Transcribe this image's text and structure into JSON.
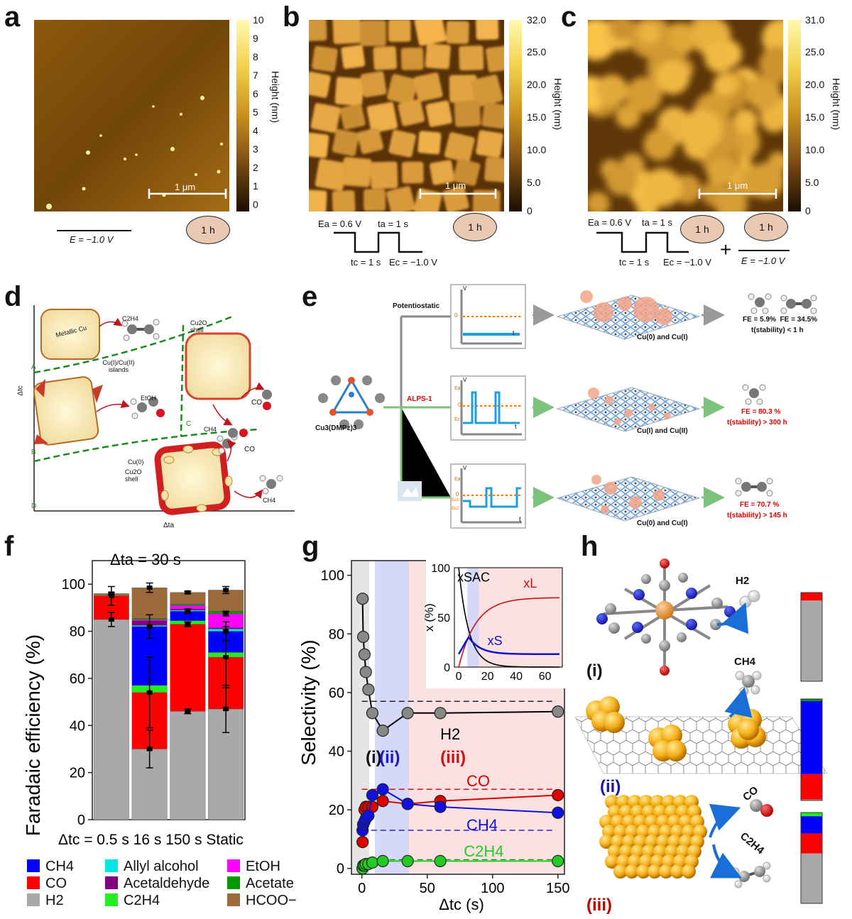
{
  "panel_labels": {
    "a": "a",
    "b": "b",
    "c": "c",
    "d": "d",
    "e": "e",
    "f": "f",
    "g": "g",
    "h": "h"
  },
  "afm": {
    "a": {
      "ticks": [
        "10",
        "9",
        "8",
        "7",
        "6",
        "5",
        "4",
        "3",
        "2",
        "1",
        "0"
      ],
      "unit": "Height (nm)",
      "scale": "1 μm",
      "duration": "1 h",
      "potential": "E = −1.0 V",
      "colors": [
        "#2a1503",
        "#7a4a12",
        "#c8901f",
        "#fff2a0"
      ]
    },
    "b": {
      "ticks": [
        "32.0",
        "25.0",
        "20.0",
        "15.0",
        "10.0",
        "5.0",
        "0"
      ],
      "unit": "Height (nm)",
      "scale": "1 μm",
      "duration": "1 h",
      "ea": "Ea = 0.6 V",
      "ta": "ta = 1 s",
      "tc": "tc = 1 s",
      "ec": "Ec = −1.0 V"
    },
    "c": {
      "ticks": [
        "31.0",
        "25.0",
        "20.0",
        "15.0",
        "10.0",
        "5.0",
        "0"
      ],
      "unit": "Height (nm)",
      "scale": "1 μm",
      "duration1": "1 h",
      "duration2": "1 h",
      "ea": "Ea = 0.6 V",
      "ta": "ta = 1 s",
      "tc": "tc = 1 s",
      "ec": "Ec = −1.0 V",
      "plus": "+",
      "potential": "E = −1.0 V"
    }
  },
  "panel_d": {
    "yaxis": "Δtc",
    "xaxis": "Δta",
    "regions": [
      "A",
      "B",
      "C",
      "D"
    ],
    "metallic": "Metallic Cu",
    "islands": "Cu(I)/Cu(II) islands",
    "shell1": "Cu2O shell",
    "cu0": "Cu(0)",
    "shell2": "Cu2O shell",
    "products": {
      "c2h4": "C2H4",
      "etoh": "EtOH",
      "ch4a": "CH4",
      "co1": "CO",
      "co2": "CO",
      "ch4b": "CH4"
    }
  },
  "panel_e": {
    "molecule": "Cu3(DMPz)3",
    "rows": [
      {
        "mode": "Potentiostatic",
        "sites": "Cu(0) and Cu(I)",
        "fe": "FE = 5.9%  FE = 34.5%",
        "stability": "t(stability) < 1 h"
      },
      {
        "mode": "ALPS-1",
        "sites": "Cu(I) and Cu(II)",
        "fe": "FE = 80.3 %",
        "stability": "t(stability) > 300 h"
      },
      {
        "mode": "",
        "sites": "Cu(0) and Cu(I)",
        "fe": "FE = 70.7 %",
        "stability": "t(stability) > 145 h"
      }
    ],
    "axis_v": "V",
    "axis_t": "t",
    "zero": "0",
    "ea": "Ea",
    "ec": "Ec",
    "ec1": "Ec1",
    "ec2": "Ec2"
  },
  "legend_f": [
    "CH4",
    "CO",
    "H2",
    "Allyl alcohol",
    "Acetaldehyde",
    "C2H4",
    "EtOH",
    "Acetate",
    "HCOO−"
  ],
  "panel_h": {
    "i": "(i)",
    "ii": "(ii)",
    "iii": "(iii)",
    "h2": "H2",
    "ch4": "CH4",
    "co": "CO",
    "c2h4": "C2H4"
  },
  "chart_data": [
    {
      "type": "bar",
      "title": "Δta = 30 s",
      "ylabel": "Faradaic efficiency (%)",
      "xlabel": "Δtc = 0.5 s   16 s  150 s  Static",
      "categories": [
        "0.5 s",
        "16 s",
        "150 s",
        "Static"
      ],
      "ylim": [
        0,
        110
      ],
      "yticks": [
        "0",
        "20",
        "40",
        "60",
        "80",
        "100"
      ],
      "series": [
        {
          "name": "H2",
          "color": "#a9a9a9",
          "values": [
            85,
            30,
            46,
            47
          ],
          "err": [
            3,
            8,
            1,
            10
          ]
        },
        {
          "name": "CO",
          "color": "#ff0000",
          "values": [
            10,
            24,
            37,
            22
          ],
          "err": [
            4,
            15,
            1,
            13
          ]
        },
        {
          "name": "C2H4",
          "color": "#22ee22",
          "values": [
            0,
            3,
            1.5,
            2
          ]
        },
        {
          "name": "CH4",
          "color": "#0000ff",
          "values": [
            0,
            25,
            4,
            9
          ],
          "err": [
            0,
            5,
            1,
            4
          ]
        },
        {
          "name": "Allyl alcohol",
          "color": "#00e5e5",
          "values": [
            0,
            0.5,
            0.5,
            1
          ]
        },
        {
          "name": "Acetaldehyde",
          "color": "#800080",
          "values": [
            0,
            2,
            0.5,
            0.5
          ]
        },
        {
          "name": "EtOH",
          "color": "#ff00ff",
          "values": [
            0,
            0.5,
            1.5,
            6
          ],
          "err": [
            0,
            0,
            0,
            1
          ]
        },
        {
          "name": "Acetate",
          "color": "#009900",
          "values": [
            0,
            0.5,
            0.5,
            1
          ]
        },
        {
          "name": "HCOO−",
          "color": "#9c6a3a",
          "values": [
            1,
            13,
            5,
            9
          ],
          "err": [
            0.5,
            2,
            0.5,
            1.5
          ]
        }
      ]
    },
    {
      "type": "scatter",
      "ylabel": "Selectivity (%)",
      "xlabel": "Δtc (s)",
      "xlim": [
        -8,
        155
      ],
      "ylim": [
        -2,
        105
      ],
      "xticks": [
        "0",
        "50",
        "100",
        "150"
      ],
      "yticks": [
        "0",
        "20",
        "40",
        "60",
        "80",
        "100"
      ],
      "regions": [
        "(i)",
        "(ii)",
        "(iii)"
      ],
      "series": [
        {
          "name": "H2",
          "color": "#888888",
          "x": [
            0.5,
            1,
            2,
            3,
            5,
            8,
            16,
            35,
            60,
            150
          ],
          "y": [
            92,
            79,
            73,
            67,
            61,
            53,
            47,
            53,
            53,
            53.5
          ]
        },
        {
          "name": "CO",
          "color": "#e00000",
          "x": [
            0.5,
            1,
            2,
            3,
            5,
            8,
            16,
            35,
            60,
            150
          ],
          "y": [
            9,
            15,
            20,
            21,
            21,
            21,
            23,
            22,
            23,
            25
          ]
        },
        {
          "name": "CH4",
          "color": "#1010e0",
          "x": [
            0.5,
            1,
            2,
            3,
            5,
            8,
            16,
            35,
            60,
            150
          ],
          "y": [
            13,
            15,
            16,
            17,
            18,
            25,
            27,
            22,
            21,
            19
          ]
        },
        {
          "name": "C2H4",
          "color": "#22cc22",
          "x": [
            0.5,
            1,
            2,
            3,
            5,
            8,
            16,
            35,
            60,
            150
          ],
          "y": [
            0,
            1,
            1,
            1.5,
            1.5,
            2,
            2.5,
            2.5,
            2.5,
            2.5
          ]
        }
      ],
      "dashed_levels": [
        57,
        27,
        13,
        3
      ],
      "inset": {
        "ylabel": "x (%)",
        "xticks": [
          "0",
          "20",
          "40",
          "60"
        ],
        "yticks": [
          "0",
          "50",
          "100"
        ],
        "xlim": [
          -3,
          72
        ],
        "ylim": [
          0,
          100
        ],
        "series": [
          {
            "name": "xSAC",
            "color": "#000000"
          },
          {
            "name": "xL",
            "color": "#cc1111"
          },
          {
            "name": "xS",
            "color": "#1111cc"
          }
        ]
      }
    }
  ]
}
